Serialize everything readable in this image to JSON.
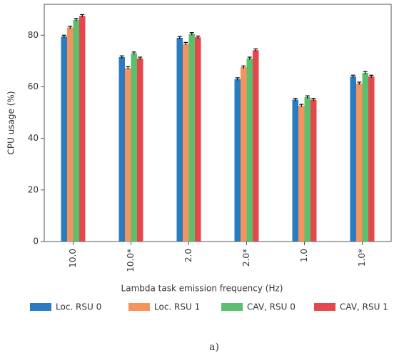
{
  "chart_data": {
    "type": "bar",
    "caption": "a)",
    "xlabel": "Lambda task emission frequency (Hz)",
    "ylabel": "CPU usage (%)",
    "categories": [
      "10.0",
      "10.0*",
      "2.0",
      "2.0*",
      "1.0",
      "1.0*"
    ],
    "series": [
      {
        "name": "Loc. RSU 0",
        "color": "#2a7bbf",
        "values": [
          79.5,
          71.5,
          79,
          63,
          55,
          64
        ],
        "errors": [
          0.5,
          0.5,
          0.5,
          0.5,
          0.5,
          0.5
        ]
      },
      {
        "name": "Loc. RSU 1",
        "color": "#f4935e",
        "values": [
          83,
          67.3,
          76.7,
          67.6,
          52.7,
          61.3
        ],
        "errors": [
          0.5,
          0.5,
          0.5,
          0.5,
          0.5,
          0.5
        ]
      },
      {
        "name": "CAV, RSU 0",
        "color": "#5cbf6e",
        "values": [
          86,
          73,
          80.5,
          71,
          56,
          65.4
        ],
        "errors": [
          0.5,
          0.5,
          0.5,
          0.5,
          0.5,
          0.5
        ]
      },
      {
        "name": "CAV, RSU 1",
        "color": "#e4484c",
        "values": [
          87.5,
          71,
          79.2,
          74.2,
          55,
          64
        ],
        "errors": [
          0.5,
          0.5,
          0.5,
          0.5,
          0.5,
          0.5
        ]
      }
    ],
    "ylim": [
      0,
      92
    ],
    "yticks": [
      0,
      20,
      40,
      60,
      80
    ],
    "grid": false
  }
}
